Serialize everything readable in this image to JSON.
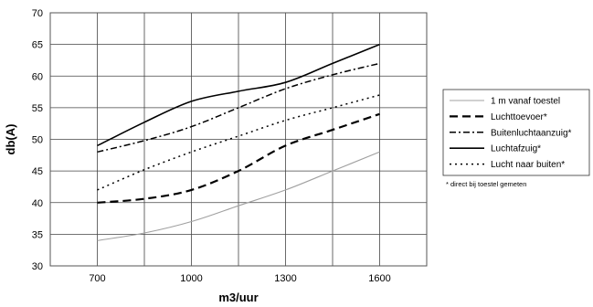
{
  "chart_data": {
    "type": "line",
    "title": "",
    "xlabel": "m3/uur",
    "ylabel": "db(A)",
    "x": [
      700,
      1000,
      1300,
      1600
    ],
    "x_ticks": [
      "700",
      "1000",
      "1300",
      "1600"
    ],
    "xlim": [
      550,
      1750
    ],
    "ylim": [
      30,
      70
    ],
    "y_ticks": [
      "30",
      "35",
      "40",
      "45",
      "50",
      "55",
      "60",
      "65",
      "70"
    ],
    "grid": true,
    "legend_position": "right",
    "legend_note": "* direct bij toestel gemeten",
    "series": [
      {
        "name": "1 m vanaf toestel",
        "style": "solid-thin",
        "color": "#a0a0a0",
        "x": [
          700,
          850,
          1000,
          1150,
          1300,
          1450,
          1600
        ],
        "values": [
          34,
          35.2,
          37,
          39.5,
          42,
          45,
          48
        ]
      },
      {
        "name": "Luchttoevoer*",
        "style": "long-dash",
        "color": "#000000",
        "x": [
          700,
          850,
          1000,
          1150,
          1300,
          1450,
          1600
        ],
        "values": [
          40,
          40.6,
          42,
          45,
          49,
          51.5,
          54
        ]
      },
      {
        "name": "Buitenluchtaanzuig*",
        "style": "dash-dot",
        "color": "#000000",
        "x": [
          700,
          850,
          1000,
          1150,
          1300,
          1450,
          1600
        ],
        "values": [
          48,
          49.8,
          52,
          55,
          58,
          60.2,
          62
        ]
      },
      {
        "name": "Luchtafzuig*",
        "style": "solid",
        "color": "#000000",
        "x": [
          700,
          850,
          1000,
          1150,
          1300,
          1450,
          1600
        ],
        "values": [
          49,
          52.7,
          56,
          57.6,
          59,
          62,
          65
        ]
      },
      {
        "name": "Lucht naar buiten*",
        "style": "dotted",
        "color": "#000000",
        "x": [
          700,
          850,
          1000,
          1150,
          1300,
          1450,
          1600
        ],
        "values": [
          42,
          45.2,
          48,
          50.5,
          53,
          55,
          57
        ]
      }
    ]
  }
}
